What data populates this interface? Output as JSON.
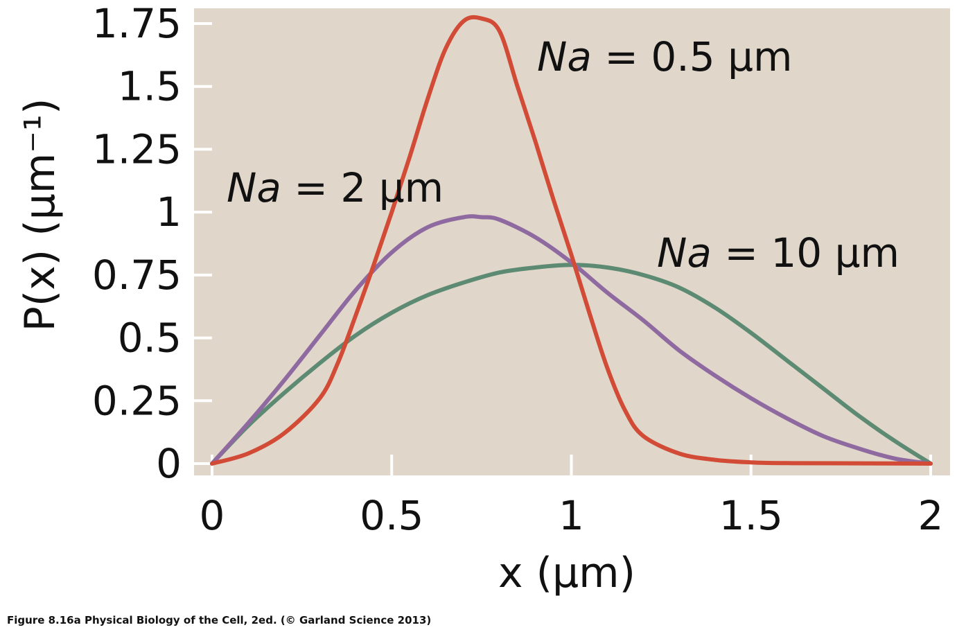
{
  "caption": "Figure 8.16a  Physical Biology of the Cell, 2ed. (© Garland Science 2013)",
  "chart_data": {
    "type": "line",
    "xlabel": "x (μm)",
    "ylabel": "P(x) (μm⁻¹)",
    "xlim": [
      0,
      2
    ],
    "ylim": [
      0,
      1.75
    ],
    "xticks": [
      "0",
      "0.5",
      "1",
      "1.5",
      "2"
    ],
    "yticks": [
      "0",
      "0.25",
      "0.5",
      "0.75",
      "1",
      "1.25",
      "1.5",
      "1.75"
    ],
    "grid": false,
    "background_color": "#e0d7ca",
    "series": [
      {
        "name": "Na = 0.5 μm",
        "color": "#d14b36",
        "x": [
          0,
          0.1,
          0.2,
          0.3,
          0.35,
          0.4,
          0.45,
          0.5,
          0.55,
          0.6,
          0.65,
          0.7,
          0.75,
          0.8,
          0.85,
          0.9,
          0.95,
          1.0,
          1.05,
          1.1,
          1.15,
          1.2,
          1.3,
          1.4,
          1.5,
          1.6,
          1.8,
          2.0
        ],
        "y": [
          0,
          0.04,
          0.12,
          0.26,
          0.4,
          0.59,
          0.79,
          1.0,
          1.22,
          1.45,
          1.65,
          1.76,
          1.77,
          1.72,
          1.5,
          1.28,
          1.05,
          0.83,
          0.6,
          0.38,
          0.21,
          0.11,
          0.04,
          0.015,
          0.005,
          0.002,
          0.001,
          0
        ]
      },
      {
        "name": "Na = 2 μm",
        "color": "#8f6aa0",
        "x": [
          0,
          0.1,
          0.2,
          0.3,
          0.4,
          0.5,
          0.6,
          0.7,
          0.75,
          0.8,
          0.9,
          1.0,
          1.1,
          1.2,
          1.3,
          1.4,
          1.5,
          1.6,
          1.7,
          1.8,
          1.9,
          2.0
        ],
        "y": [
          0,
          0.16,
          0.33,
          0.51,
          0.69,
          0.84,
          0.94,
          0.98,
          0.98,
          0.97,
          0.9,
          0.8,
          0.68,
          0.57,
          0.45,
          0.35,
          0.26,
          0.18,
          0.11,
          0.06,
          0.02,
          0
        ]
      },
      {
        "name": "Na = 10 μm",
        "color": "#5d8a72",
        "x": [
          0,
          0.1,
          0.2,
          0.3,
          0.4,
          0.5,
          0.6,
          0.7,
          0.8,
          0.9,
          1.0,
          1.1,
          1.2,
          1.3,
          1.4,
          1.5,
          1.6,
          1.7,
          1.8,
          1.9,
          2.0
        ],
        "y": [
          0,
          0.15,
          0.28,
          0.4,
          0.51,
          0.6,
          0.67,
          0.72,
          0.76,
          0.78,
          0.79,
          0.78,
          0.75,
          0.7,
          0.62,
          0.52,
          0.41,
          0.3,
          0.19,
          0.09,
          0
        ]
      }
    ],
    "annotations": [
      {
        "label_prefix": "Na",
        "label_rest": " = 0.5 μm",
        "series": 0
      },
      {
        "label_prefix": "Na",
        "label_rest": " = 2 μm",
        "series": 1
      },
      {
        "label_prefix": "Na",
        "label_rest": " = 10 μm",
        "series": 2
      }
    ]
  }
}
